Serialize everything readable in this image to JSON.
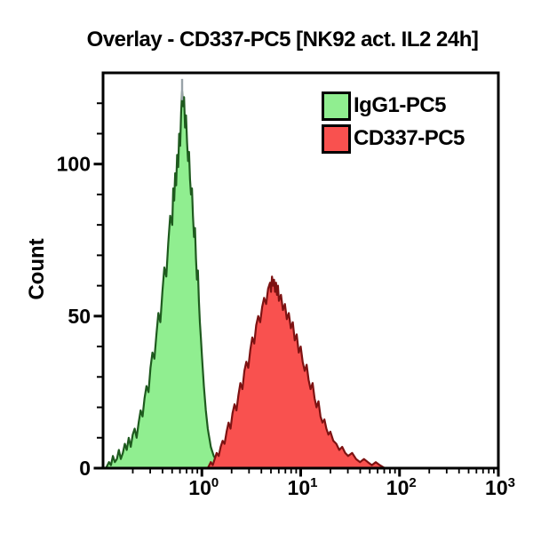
{
  "figure": {
    "title": "Overlay - CD337-PC5 [NK92 act. IL2 24h]"
  },
  "legend": {
    "entries": [
      {
        "label": "IgG1-PC5",
        "color": "#90EE90",
        "border": "#000000"
      },
      {
        "label": "CD337-PC5",
        "color": "#F9514F",
        "border": "#000000"
      }
    ]
  },
  "chart_data": {
    "type": "area",
    "subtype": "flow-cytometry-histogram-overlay",
    "title": "Overlay - CD337-PC5 [NK92 act. IL2 24h]",
    "xlabel": "",
    "ylabel": "Count",
    "grid": false,
    "legend_position": "top-right-inside",
    "x_axis": {
      "scale": "log10",
      "min_exp": -1,
      "max_exp": 3,
      "major_tick_exps": [
        0,
        1,
        2,
        3
      ],
      "tick_label_base": "10"
    },
    "y_axis": {
      "min": 0,
      "max": 130,
      "major_ticks": [
        0,
        50,
        100
      ],
      "minor_step": 10
    },
    "series": [
      {
        "name": "IgG1-PC5",
        "fill": "#90EE90",
        "stroke": "#1E5A1E",
        "peak": {
          "x": 0.63,
          "count": 124
        },
        "points_logx_count": [
          [
            -0.97,
            0
          ],
          [
            -0.94,
            2
          ],
          [
            -0.92,
            1
          ],
          [
            -0.9,
            4
          ],
          [
            -0.88,
            2
          ],
          [
            -0.86,
            3
          ],
          [
            -0.84,
            6
          ],
          [
            -0.82,
            3
          ],
          [
            -0.8,
            5
          ],
          [
            -0.78,
            8
          ],
          [
            -0.76,
            6
          ],
          [
            -0.74,
            10
          ],
          [
            -0.72,
            7
          ],
          [
            -0.7,
            11
          ],
          [
            -0.68,
            13
          ],
          [
            -0.66,
            10
          ],
          [
            -0.64,
            15
          ],
          [
            -0.62,
            19
          ],
          [
            -0.6,
            17
          ],
          [
            -0.58,
            23
          ],
          [
            -0.56,
            27
          ],
          [
            -0.54,
            25
          ],
          [
            -0.52,
            33
          ],
          [
            -0.5,
            38
          ],
          [
            -0.48,
            36
          ],
          [
            -0.46,
            44
          ],
          [
            -0.44,
            51
          ],
          [
            -0.42,
            48
          ],
          [
            -0.4,
            58
          ],
          [
            -0.38,
            66
          ],
          [
            -0.36,
            63
          ],
          [
            -0.34,
            74
          ],
          [
            -0.32,
            83
          ],
          [
            -0.3,
            80
          ],
          [
            -0.29,
            92
          ],
          [
            -0.28,
            88
          ],
          [
            -0.27,
            97
          ],
          [
            -0.26,
            93
          ],
          [
            -0.25,
            103
          ],
          [
            -0.24,
            99
          ],
          [
            -0.23,
            110
          ],
          [
            -0.22,
            106
          ],
          [
            -0.21,
            117
          ],
          [
            -0.2,
            124
          ],
          [
            -0.19,
            119
          ],
          [
            -0.18,
            122
          ],
          [
            -0.17,
            112
          ],
          [
            -0.16,
            116
          ],
          [
            -0.15,
            107
          ],
          [
            -0.14,
            101
          ],
          [
            -0.13,
            104
          ],
          [
            -0.12,
            95
          ],
          [
            -0.11,
            90
          ],
          [
            -0.1,
            92
          ],
          [
            -0.09,
            83
          ],
          [
            -0.08,
            76
          ],
          [
            -0.07,
            79
          ],
          [
            -0.06,
            69
          ],
          [
            -0.05,
            62
          ],
          [
            -0.04,
            65
          ],
          [
            -0.03,
            55
          ],
          [
            -0.02,
            48
          ],
          [
            -0.01,
            43
          ],
          [
            0.0,
            37
          ],
          [
            0.01,
            32
          ],
          [
            0.02,
            27
          ],
          [
            0.03,
            23
          ],
          [
            0.04,
            19
          ],
          [
            0.05,
            16
          ],
          [
            0.06,
            13
          ],
          [
            0.07,
            11
          ],
          [
            0.08,
            9
          ],
          [
            0.09,
            7
          ],
          [
            0.1,
            6
          ],
          [
            0.12,
            4
          ],
          [
            0.14,
            3
          ],
          [
            0.16,
            2
          ],
          [
            0.18,
            1
          ],
          [
            0.2,
            0
          ]
        ]
      },
      {
        "name": "CD337-PC5",
        "fill": "#F9514F",
        "stroke": "#7D1212",
        "peak": {
          "x": 5.0,
          "count": 63
        },
        "points_logx_count": [
          [
            0.06,
            0
          ],
          [
            0.09,
            2
          ],
          [
            0.11,
            1
          ],
          [
            0.13,
            3
          ],
          [
            0.15,
            5
          ],
          [
            0.17,
            4
          ],
          [
            0.19,
            7
          ],
          [
            0.21,
            9
          ],
          [
            0.23,
            8
          ],
          [
            0.25,
            12
          ],
          [
            0.27,
            15
          ],
          [
            0.29,
            13
          ],
          [
            0.31,
            18
          ],
          [
            0.33,
            21
          ],
          [
            0.35,
            19
          ],
          [
            0.37,
            24
          ],
          [
            0.39,
            28
          ],
          [
            0.41,
            26
          ],
          [
            0.43,
            32
          ],
          [
            0.45,
            35
          ],
          [
            0.47,
            33
          ],
          [
            0.49,
            39
          ],
          [
            0.51,
            43
          ],
          [
            0.53,
            41
          ],
          [
            0.55,
            47
          ],
          [
            0.57,
            50
          ],
          [
            0.59,
            48
          ],
          [
            0.61,
            53
          ],
          [
            0.63,
            56
          ],
          [
            0.65,
            54
          ],
          [
            0.67,
            59
          ],
          [
            0.69,
            61
          ],
          [
            0.7,
            58
          ],
          [
            0.71,
            63
          ],
          [
            0.72,
            60
          ],
          [
            0.73,
            62
          ],
          [
            0.74,
            58
          ],
          [
            0.75,
            61
          ],
          [
            0.76,
            57
          ],
          [
            0.77,
            60
          ],
          [
            0.78,
            55
          ],
          [
            0.8,
            57
          ],
          [
            0.82,
            52
          ],
          [
            0.84,
            54
          ],
          [
            0.86,
            49
          ],
          [
            0.88,
            51
          ],
          [
            0.9,
            46
          ],
          [
            0.92,
            48
          ],
          [
            0.94,
            42
          ],
          [
            0.96,
            44
          ],
          [
            0.98,
            38
          ],
          [
            1.0,
            40
          ],
          [
            1.02,
            35
          ],
          [
            1.04,
            32
          ],
          [
            1.06,
            34
          ],
          [
            1.08,
            29
          ],
          [
            1.1,
            26
          ],
          [
            1.12,
            28
          ],
          [
            1.14,
            23
          ],
          [
            1.16,
            20
          ],
          [
            1.18,
            22
          ],
          [
            1.2,
            17
          ],
          [
            1.22,
            15
          ],
          [
            1.24,
            16
          ],
          [
            1.26,
            13
          ],
          [
            1.28,
            11
          ],
          [
            1.3,
            12
          ],
          [
            1.33,
            9
          ],
          [
            1.36,
            8
          ],
          [
            1.39,
            6
          ],
          [
            1.42,
            7
          ],
          [
            1.45,
            5
          ],
          [
            1.48,
            4
          ],
          [
            1.52,
            5
          ],
          [
            1.56,
            3
          ],
          [
            1.6,
            2
          ],
          [
            1.64,
            3
          ],
          [
            1.68,
            2
          ],
          [
            1.72,
            1
          ],
          [
            1.76,
            2
          ],
          [
            1.8,
            1
          ],
          [
            1.85,
            0
          ]
        ]
      }
    ],
    "peak_marker": {
      "series": "IgG1-PC5",
      "log_x": -0.2,
      "count_bottom": 121,
      "count_top": 128,
      "color": "#98A2A8"
    },
    "frame_color": "#000000",
    "tick_color": "#000000",
    "text_color": "#000000"
  }
}
